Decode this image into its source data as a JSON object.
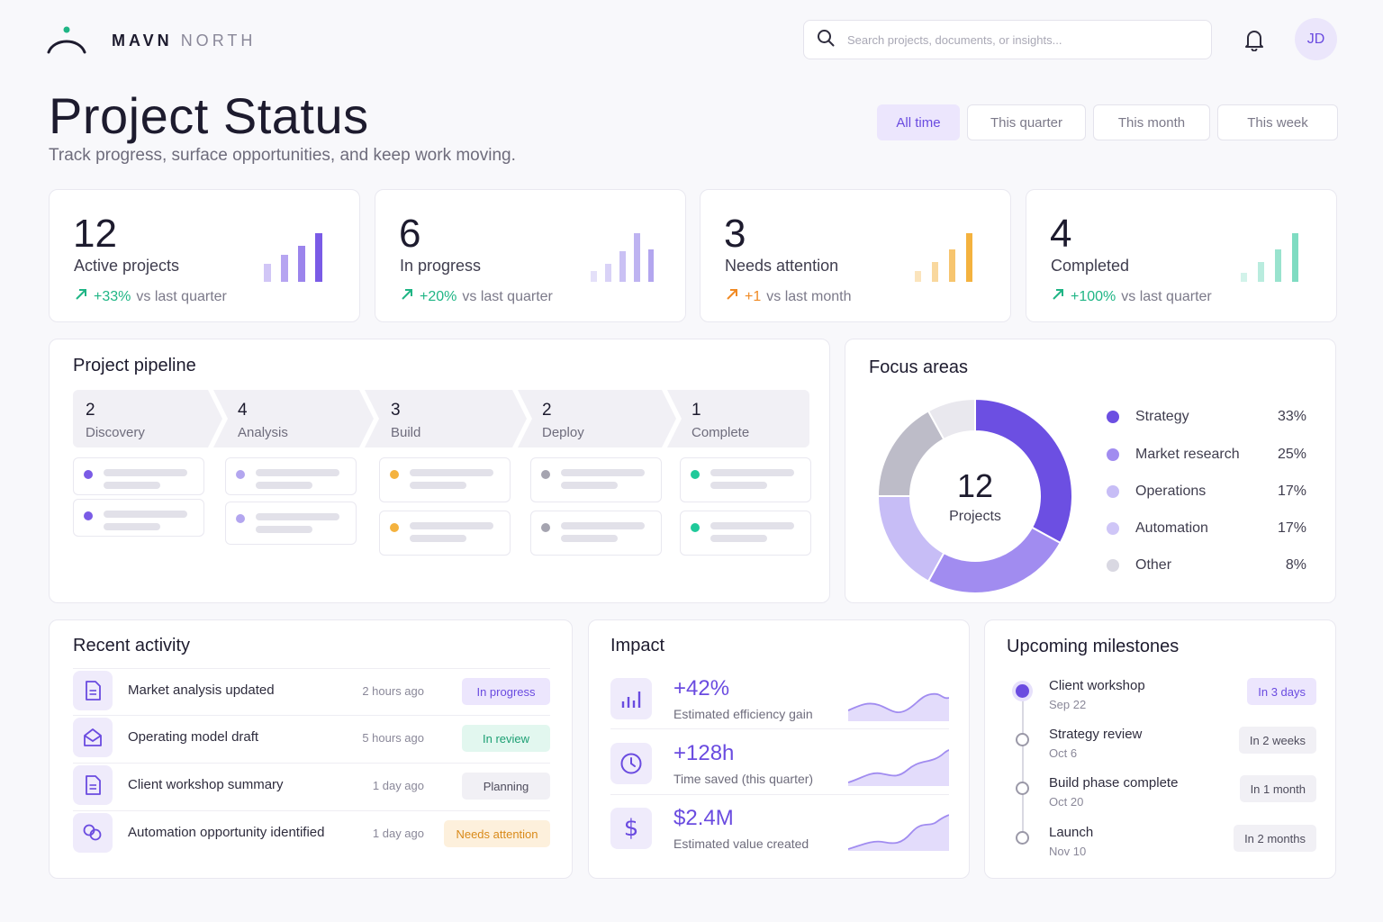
{
  "brand": {
    "name_bold": "MAVN",
    "name_light": "NORTH"
  },
  "search": {
    "placeholder": "Search projects, documents, or insights..."
  },
  "user": {
    "initials": "JD"
  },
  "page": {
    "title": "Project Status",
    "subtitle": "Track progress, surface opportunities, and keep work moving."
  },
  "filters": [
    "All time",
    "This quarter",
    "This month",
    "This week"
  ],
  "active_filter": "All time",
  "stats": [
    {
      "value": "12",
      "label": "Active projects",
      "change": "+33%",
      "period": "vs last quarter",
      "accent": "#7a5be6",
      "change_color": "#1fb585"
    },
    {
      "value": "6",
      "label": "In progress",
      "change": "+20%",
      "period": "vs last quarter",
      "accent": "#b3a6ef",
      "change_color": "#1fb585"
    },
    {
      "value": "3",
      "label": "Needs attention",
      "change": "+1",
      "period": "vs last month",
      "accent": "#f4b23e",
      "change_color": "#f08a24"
    },
    {
      "value": "4",
      "label": "Completed",
      "change": "+100%",
      "period": "vs last quarter",
      "accent": "#7fdcc2",
      "change_color": "#1fb585"
    }
  ],
  "pipeline": {
    "title": "Project pipeline",
    "stages": [
      {
        "count": "2",
        "label": "Discovery",
        "dot_color": "#7a5be6"
      },
      {
        "count": "4",
        "label": "Analysis",
        "dot_color": "#b3a6ef"
      },
      {
        "count": "3",
        "label": "Build",
        "dot_color": "#f4b23e"
      },
      {
        "count": "2",
        "label": "Deploy",
        "dot_color": "#a5a4b0"
      },
      {
        "count": "1",
        "label": "Complete",
        "dot_color": "#1fc99a"
      }
    ]
  },
  "focus": {
    "title": "Focus areas",
    "center_value": "12",
    "center_label": "Projects",
    "items": [
      {
        "label": "Strategy",
        "pct": "33%",
        "value": 33,
        "color": "#6c4fe2"
      },
      {
        "label": "Market research",
        "pct": "25%",
        "value": 25,
        "color": "#a18cf0"
      },
      {
        "label": "Operations",
        "pct": "17%",
        "value": 17,
        "color": "#c7bdf6"
      },
      {
        "label": "Automation",
        "pct": "17%",
        "value": 17,
        "color": "#bdbcc8"
      },
      {
        "label": "Other",
        "pct": "8%",
        "value": 8,
        "color": "#e9e8ee"
      }
    ]
  },
  "activity": {
    "title": "Recent activity",
    "items": [
      {
        "title": "Market analysis updated",
        "time": "2 hours ago",
        "status": "In progress",
        "icon": "document-icon",
        "badge_bg": "#ece6fd",
        "badge_fg": "#6a4be0"
      },
      {
        "title": "Operating model draft",
        "time": "5 hours ago",
        "status": "In review",
        "icon": "envelope-open-icon",
        "badge_bg": "#e2f7ef",
        "badge_fg": "#1c9f73"
      },
      {
        "title": "Client workshop summary",
        "time": "1 day ago",
        "status": "Planning",
        "icon": "document-icon",
        "badge_bg": "#f1f0f5",
        "badge_fg": "#4e4c5c"
      },
      {
        "title": "Automation opportunity identified",
        "time": "1 day ago",
        "status": "Needs attention",
        "icon": "link-icon",
        "badge_bg": "#fdf0dc",
        "badge_fg": "#d98a1a"
      }
    ]
  },
  "impact": {
    "title": "Impact",
    "items": [
      {
        "value": "+42%",
        "label": "Estimated efficiency gain",
        "icon": "bar-chart-icon"
      },
      {
        "value": "+128h",
        "label": "Time saved (this quarter)",
        "icon": "clock-icon"
      },
      {
        "value": "$2.4M",
        "label": "Estimated value created",
        "icon": "dollar-icon"
      }
    ]
  },
  "milestones": {
    "title": "Upcoming milestones",
    "items": [
      {
        "title": "Client workshop",
        "date": "Sep 22",
        "due": "In 3 days"
      },
      {
        "title": "Strategy review",
        "date": "Oct 6",
        "due": "In 2 weeks"
      },
      {
        "title": "Build phase complete",
        "date": "Oct 20",
        "due": "In 1 month"
      },
      {
        "title": "Launch",
        "date": "Nov 10",
        "due": "In 2 months"
      }
    ]
  }
}
